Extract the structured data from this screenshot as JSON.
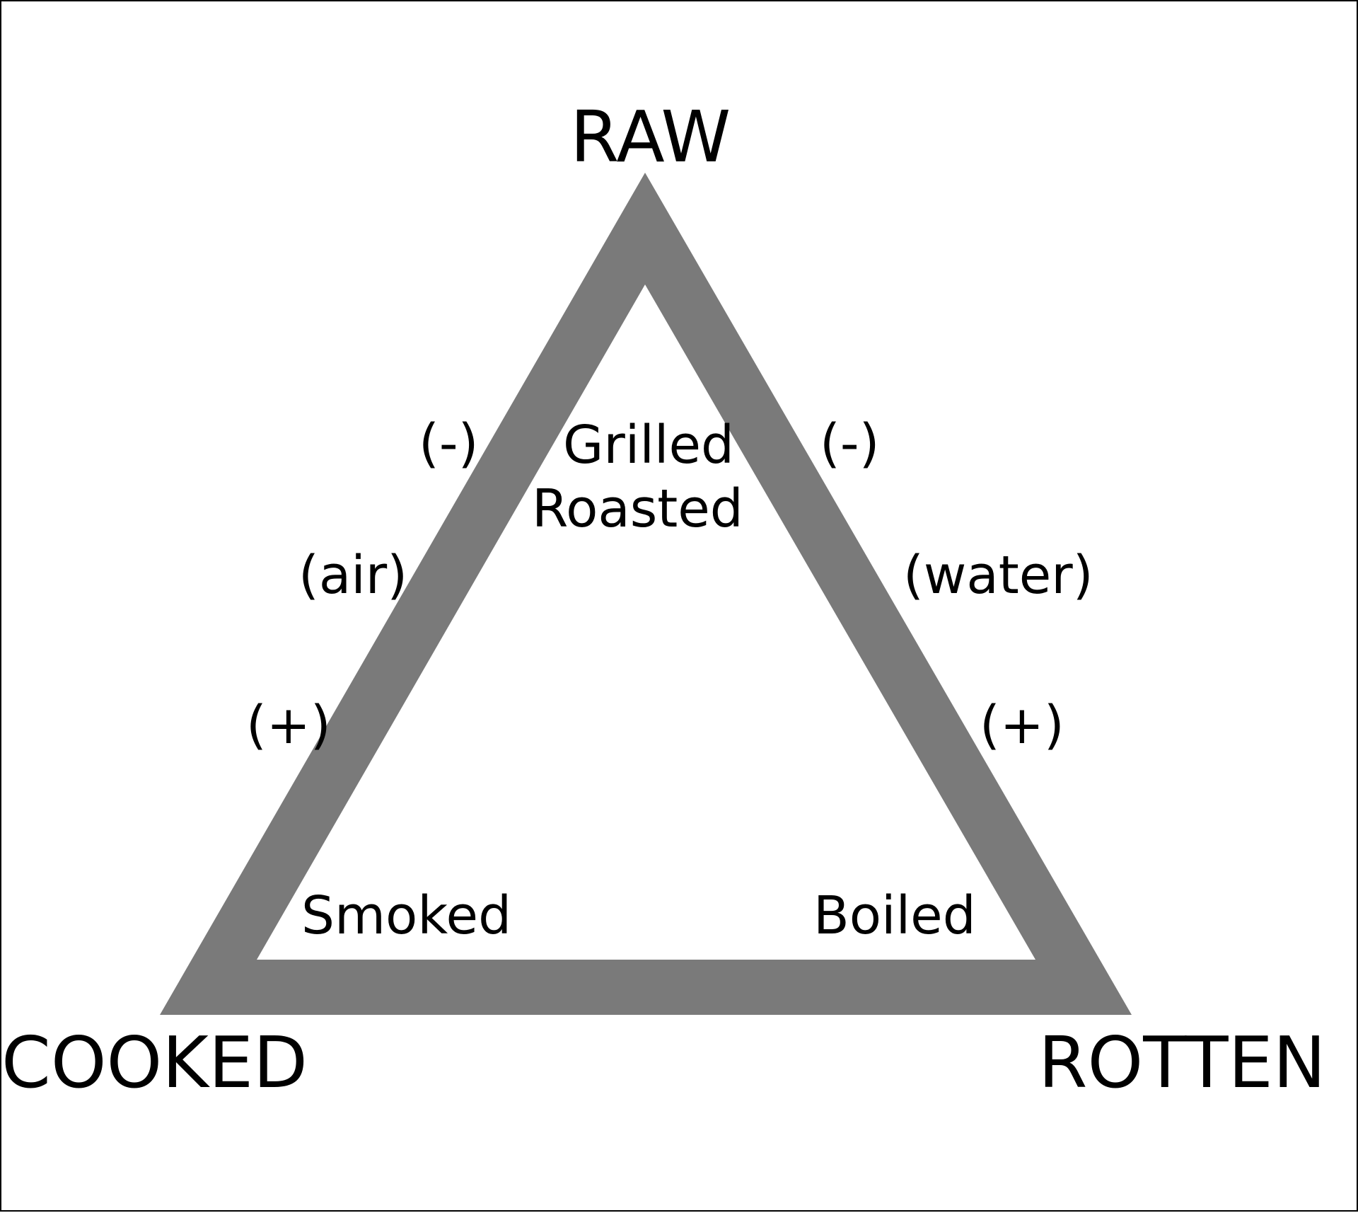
{
  "vertices": {
    "top": "RAW",
    "bottom_left": "COOKED",
    "bottom_right": "ROTTEN"
  },
  "methods": {
    "top_line1": "Grilled",
    "top_line2": "Roasted",
    "bottom_left": "Smoked",
    "bottom_right": "Boiled"
  },
  "left_edge": {
    "top_sign": "(-)",
    "medium": "(air)",
    "bottom_sign": "(+)"
  },
  "right_edge": {
    "top_sign": "(-)",
    "medium": "(water)",
    "bottom_sign": "(+)"
  },
  "colors": {
    "triangle": "#7a7a7a",
    "text": "#000000",
    "background": "#ffffff"
  }
}
